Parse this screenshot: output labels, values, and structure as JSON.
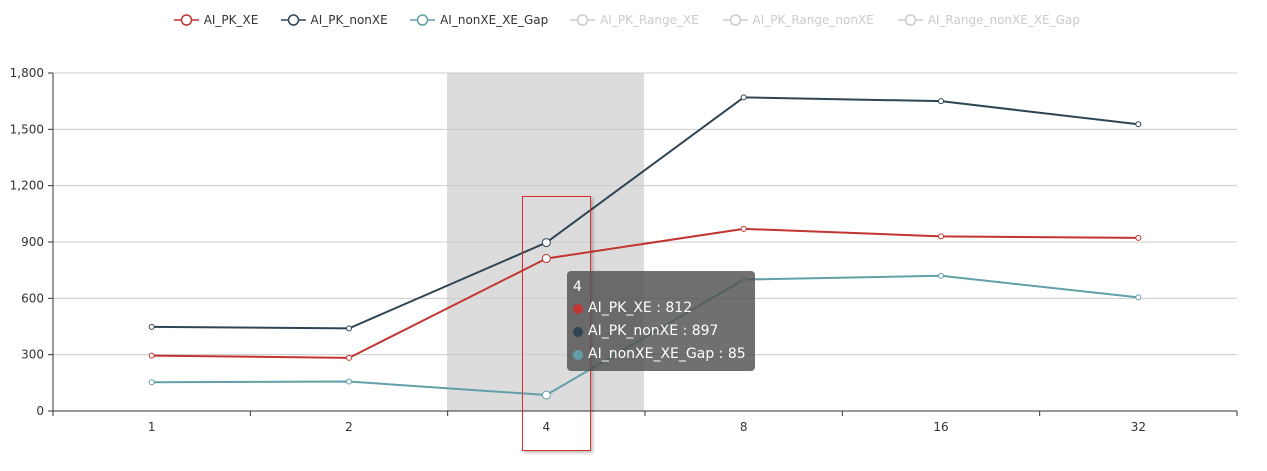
{
  "legend": [
    {
      "name": "AI_PK_XE",
      "color": "#c23531",
      "active": true
    },
    {
      "name": "AI_PK_nonXE",
      "color": "#2f4554",
      "active": true
    },
    {
      "name": "AI_nonXE_XE_Gap",
      "color": "#61a0a8",
      "active": true
    },
    {
      "name": "AI_PK_Range_XE",
      "color": "#cccccc",
      "active": false
    },
    {
      "name": "AI_PK_Range_nonXE",
      "color": "#cccccc",
      "active": false
    },
    {
      "name": "AI_Range_nonXE_XE_Gap",
      "color": "#cccccc",
      "active": false
    }
  ],
  "chart_data": {
    "type": "line",
    "categories": [
      "1",
      "2",
      "4",
      "8",
      "16",
      "32"
    ],
    "series": [
      {
        "name": "AI_PK_XE",
        "color": "#c23531",
        "values": [
          295,
          283,
          812,
          970,
          930,
          922
        ]
      },
      {
        "name": "AI_PK_nonXE",
        "color": "#2f4554",
        "values": [
          448,
          440,
          897,
          1670,
          1650,
          1527
        ]
      },
      {
        "name": "AI_nonXE_XE_Gap",
        "color": "#61a0a8",
        "values": [
          153,
          157,
          85,
          700,
          720,
          605
        ]
      }
    ],
    "ylim": [
      0,
      1800
    ],
    "yticks": [
      "0",
      "300",
      "600",
      "900",
      "1,200",
      "1,500",
      "1,800"
    ],
    "ytick_values": [
      0,
      300,
      600,
      900,
      1200,
      1500,
      1800
    ],
    "grid": true,
    "legend_position": "top-center",
    "highlighted_category": "4"
  },
  "tooltip": {
    "title": "4",
    "rows": [
      {
        "label": "AI_PK_XE : 812",
        "color": "#c23531"
      },
      {
        "label": "AI_PK_nonXE : 897",
        "color": "#2f4554"
      },
      {
        "label": "AI_nonXE_XE_Gap : 85",
        "color": "#61a0a8"
      }
    ]
  }
}
